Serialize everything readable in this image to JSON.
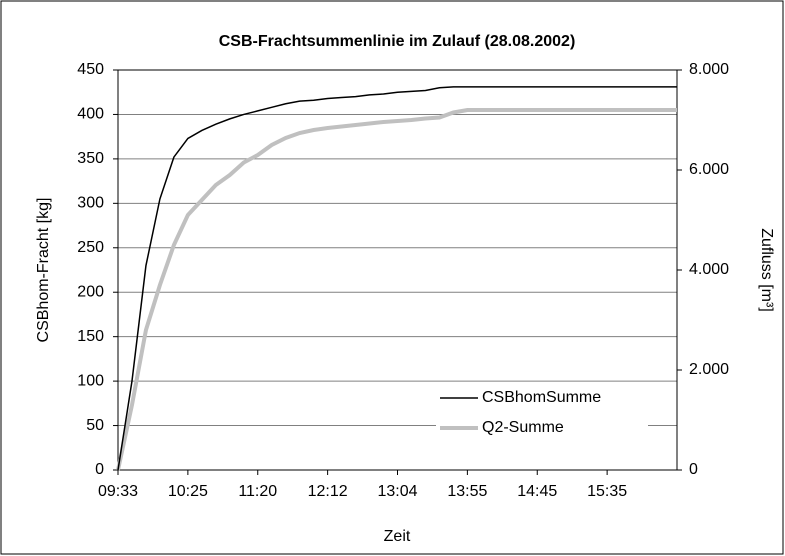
{
  "chart_data": {
    "type": "line",
    "title": "CSB-Frachtsummenlinie im Zulauf (28.08.2002)",
    "x_label": "Zeit",
    "y_label": "CSBhom-Fracht [kg]",
    "y2_label": "Zufluss [m³]",
    "categories": [
      "09:33",
      null,
      null,
      null,
      null,
      "10:25",
      null,
      null,
      null,
      null,
      "11:20",
      null,
      null,
      null,
      null,
      "12:12",
      null,
      null,
      null,
      null,
      "13:04",
      null,
      null,
      null,
      null,
      "13:55",
      null,
      null,
      null,
      null,
      "14:45",
      null,
      null,
      null,
      null,
      "15:35",
      null,
      null,
      null,
      null,
      null
    ],
    "ylim": [
      0,
      450
    ],
    "yticks": [
      0,
      50,
      100,
      150,
      200,
      250,
      300,
      350,
      400,
      450
    ],
    "y2lim": [
      0,
      8000
    ],
    "y2ticks": [
      0,
      {
        "value": 2000,
        "label": "2.000"
      },
      {
        "value": 4000,
        "label": "4.000"
      },
      {
        "value": 6000,
        "label": "6.000"
      },
      {
        "value": 8000,
        "label": "8.000"
      }
    ],
    "grid": true,
    "legend": "lower right",
    "series": [
      {
        "name": "CSBhomSumme",
        "color": "#000000",
        "values": [
          0,
          100,
          230,
          305,
          352,
          373,
          382,
          389,
          395,
          400,
          404,
          408,
          412,
          415,
          416,
          418,
          419,
          420,
          422,
          423,
          425,
          426,
          427,
          430,
          431,
          431,
          431,
          431,
          431,
          431,
          431,
          431,
          431,
          431,
          431,
          431,
          431,
          431,
          431,
          431,
          431
        ]
      },
      {
        "name": "Q2-Summe",
        "color": "#c0c0c0",
        "axis": "y2",
        "values": [
          0,
          1300,
          2800,
          3700,
          4500,
          5100,
          5400,
          5700,
          5900,
          6150,
          6300,
          6500,
          6640,
          6740,
          6800,
          6840,
          6870,
          6900,
          6930,
          6960,
          6980,
          7000,
          7030,
          7050,
          7150,
          7200,
          7200,
          7200,
          7200,
          7200,
          7200,
          7200,
          7200,
          7200,
          7200,
          7200,
          7200,
          7200,
          7200,
          7200,
          7200
        ]
      }
    ]
  }
}
